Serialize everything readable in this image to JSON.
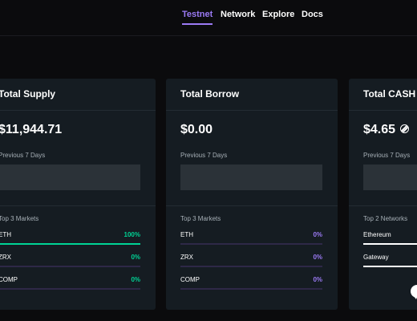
{
  "nav": {
    "testnet": "Testnet",
    "network": "Network",
    "explore": "Explore",
    "docs": "Docs"
  },
  "supply": {
    "title": "Total Supply",
    "value": "$11,944.71",
    "prev_label": "Previous 7 Days",
    "markets_label": "Top 3 Markets",
    "markets": [
      {
        "name": "ETH",
        "pct": "100%",
        "fill": 1.0
      },
      {
        "name": "ZRX",
        "pct": "0%",
        "fill": 0.0
      },
      {
        "name": "COMP",
        "pct": "0%",
        "fill": 0.0
      }
    ]
  },
  "borrow": {
    "title": "Total Borrow",
    "value": "$0.00",
    "prev_label": "Previous 7 Days",
    "markets_label": "Top 3 Markets",
    "markets": [
      {
        "name": "ETH",
        "pct": "0%",
        "fill": 0.0
      },
      {
        "name": "ZRX",
        "pct": "0%",
        "fill": 0.0
      },
      {
        "name": "COMP",
        "pct": "0%",
        "fill": 0.0
      }
    ]
  },
  "cash": {
    "title": "Total CASH",
    "value": "$4.65",
    "prev_label": "Previous 7 Days",
    "networks_label": "Top 2 Networks",
    "networks": [
      {
        "name": "Ethereum",
        "fill": 1.0
      },
      {
        "name": "Gateway",
        "fill": 1.0
      }
    ]
  },
  "colors": {
    "accent_purple": "#9b7af4",
    "accent_green": "#00d395",
    "card_bg": "#151c22",
    "page_bg": "#0b0b0d"
  },
  "icons": {
    "cash_icon": "cash-token-icon",
    "chat_icon": "chat-bubble-icon"
  }
}
